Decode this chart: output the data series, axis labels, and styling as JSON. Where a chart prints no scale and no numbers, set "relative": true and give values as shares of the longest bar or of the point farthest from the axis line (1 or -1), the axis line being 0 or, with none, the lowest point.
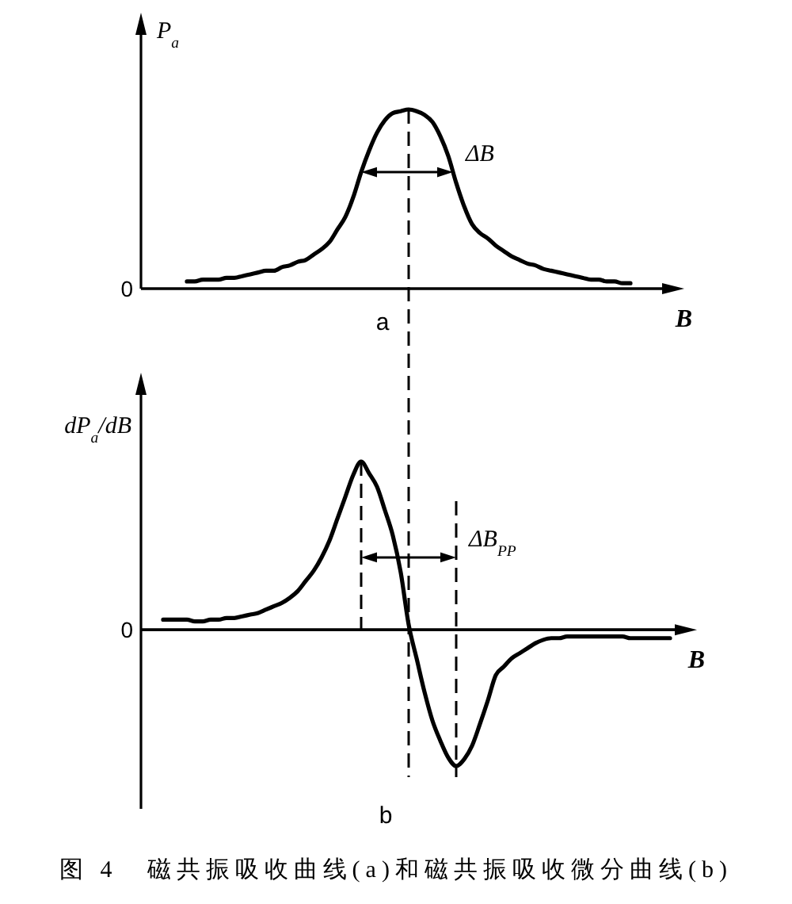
{
  "chart_data": [
    {
      "type": "line",
      "title": "a",
      "xlabel": "B",
      "ylabel": "P$_{a}$",
      "relative": true,
      "categories": [
        null,
        null,
        null,
        null,
        null,
        null,
        null,
        null,
        null,
        null,
        null,
        null,
        null,
        null,
        null,
        null,
        null,
        null,
        null,
        null,
        null,
        null,
        null,
        null,
        null,
        null,
        null,
        null,
        null,
        null,
        null,
        null,
        null,
        null,
        null,
        null,
        null,
        null,
        null,
        null,
        null,
        null,
        null,
        null,
        null,
        null,
        null,
        null,
        null,
        null,
        null,
        null,
        null,
        null,
        null,
        null,
        null,
        null,
        null,
        null,
        null,
        null,
        null,
        null,
        null,
        null
      ],
      "series": [
        {
          "color": "#000000",
          "values": [
            null,
            null,
            null,
            0.04,
            0.04,
            0.05,
            0.05,
            0.05,
            0.06,
            0.06,
            0.07,
            0.08,
            0.09,
            0.1,
            0.1,
            0.12,
            0.13,
            0.15,
            0.16,
            0.19,
            0.22,
            0.26,
            0.33,
            0.4,
            0.51,
            0.65,
            0.77,
            0.87,
            0.94,
            0.98,
            0.99,
            1.0,
            0.99,
            0.97,
            0.93,
            0.85,
            0.74,
            0.59,
            0.46,
            0.36,
            0.31,
            0.28,
            0.24,
            0.21,
            0.18,
            0.16,
            0.14,
            0.13,
            0.11,
            0.1,
            0.09,
            0.08,
            0.07,
            0.06,
            0.05,
            0.05,
            0.04,
            0.04,
            0.03,
            0.03,
            null,
            null,
            null,
            null,
            null,
            null
          ]
        }
      ],
      "ref_lines": [
        {
          "axis": "y",
          "value": 0,
          "label": "0",
          "color": "#000000"
        }
      ],
      "annotations": [
        "ΔB"
      ]
    },
    {
      "type": "line",
      "title": "b",
      "xlabel": "B",
      "ylabel": "dP$_{a}$/dB",
      "relative": true,
      "categories": [
        null,
        null,
        null,
        null,
        null,
        null,
        null,
        null,
        null,
        null,
        null,
        null,
        null,
        null,
        null,
        null,
        null,
        null,
        null,
        null,
        null,
        null,
        null,
        null,
        null,
        null,
        null,
        null,
        null,
        null,
        null,
        null,
        null,
        null,
        null,
        null,
        null,
        null,
        null,
        null,
        null,
        null,
        null,
        null,
        null,
        null,
        null,
        null,
        null,
        null,
        null,
        null,
        null,
        null,
        null,
        null,
        null,
        null,
        null,
        null,
        null,
        null,
        null,
        null,
        null,
        null
      ],
      "series": [
        {
          "color": "#000000",
          "values": [
            0.06,
            0.06,
            0.06,
            0.06,
            0.05,
            0.05,
            0.06,
            0.06,
            0.07,
            0.07,
            0.08,
            0.09,
            0.1,
            0.12,
            0.14,
            0.16,
            0.19,
            0.23,
            0.29,
            0.35,
            0.43,
            0.53,
            0.66,
            0.79,
            0.92,
            1.0,
            0.93,
            0.85,
            0.71,
            0.56,
            0.34,
            0.03,
            -0.17,
            -0.37,
            -0.54,
            -0.66,
            -0.76,
            -0.81,
            -0.77,
            -0.69,
            -0.56,
            -0.42,
            -0.27,
            -0.22,
            -0.17,
            -0.14,
            -0.11,
            -0.08,
            -0.06,
            -0.05,
            -0.05,
            -0.04,
            -0.04,
            -0.04,
            -0.04,
            -0.04,
            -0.04,
            -0.04,
            -0.04,
            -0.05,
            -0.05,
            -0.05,
            -0.05,
            -0.05,
            -0.05,
            null
          ]
        }
      ],
      "ref_lines": [
        {
          "axis": "y",
          "value": 0,
          "label": "0",
          "color": "#000000"
        }
      ],
      "annotations": [
        "ΔB$_{PP}$",
        "图 4　磁共振吸收曲线(a)和磁共振吸收微分曲线(b)"
      ]
    }
  ]
}
